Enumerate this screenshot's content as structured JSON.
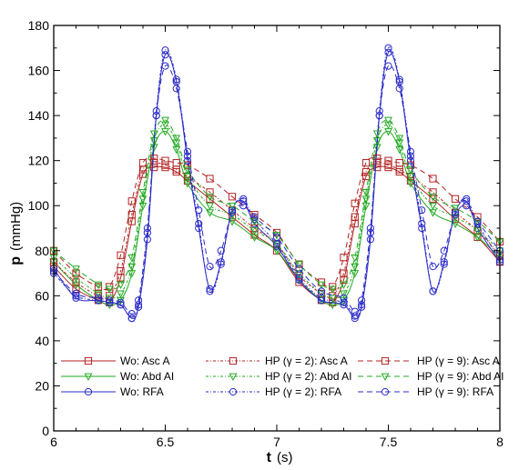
{
  "chart_data": {
    "type": "line",
    "xlabel": "t",
    "xlabel_unit": "(s)",
    "ylabel": "p",
    "ylabel_unit": "(mmHg)",
    "xlim": [
      6,
      8
    ],
    "ylim": [
      0,
      180
    ],
    "xticks": [
      "6",
      "6.5",
      "7",
      "7.5",
      "8"
    ],
    "yticks": [
      "0",
      "20",
      "40",
      "60",
      "80",
      "100",
      "120",
      "140",
      "160",
      "180"
    ],
    "grid": false,
    "legend_position": "bottom, inside plot area, three columns",
    "series": [
      {
        "name": "Wo: Asc A",
        "color": "#b22222",
        "dash": "solid",
        "marker": "square",
        "x": [
          6.0,
          6.1,
          6.2,
          6.25,
          6.3,
          6.35,
          6.4,
          6.45,
          6.5,
          6.55,
          6.6,
          6.7,
          6.8,
          6.9,
          7.0,
          7.1,
          7.2,
          7.25,
          7.3,
          7.35,
          7.4,
          7.45,
          7.5,
          7.55,
          7.6,
          7.7,
          7.8,
          7.9,
          8.0
        ],
        "y": [
          73,
          63,
          58,
          57,
          68,
          93,
          114,
          117,
          117,
          115,
          111,
          103,
          95,
          87,
          80,
          66,
          58,
          57,
          67,
          92,
          113,
          117,
          117,
          115,
          111,
          103,
          94,
          86,
          75
        ]
      },
      {
        "name": "Wo: Abd AI",
        "color": "#22aa22",
        "dash": "solid",
        "marker": "triangle-down",
        "x": [
          6.0,
          6.1,
          6.2,
          6.25,
          6.3,
          6.35,
          6.4,
          6.45,
          6.5,
          6.55,
          6.6,
          6.7,
          6.8,
          6.9,
          7.0,
          7.1,
          7.2,
          7.25,
          7.3,
          7.35,
          7.4,
          7.45,
          7.5,
          7.55,
          7.6,
          7.7,
          7.8,
          7.9,
          8.0
        ],
        "y": [
          75,
          65,
          58,
          56,
          58,
          70,
          100,
          126,
          133,
          125,
          110,
          97,
          93,
          86,
          80,
          67,
          58,
          56,
          58,
          70,
          100,
          126,
          133,
          125,
          110,
          97,
          92,
          86,
          77
        ]
      },
      {
        "name": "Wo: RFA",
        "color": "#2a2ac8",
        "dash": "solid",
        "marker": "circle",
        "x": [
          6.0,
          6.1,
          6.2,
          6.25,
          6.3,
          6.35,
          6.38,
          6.42,
          6.46,
          6.5,
          6.55,
          6.6,
          6.65,
          6.7,
          6.75,
          6.8,
          6.85,
          6.9,
          7.0,
          7.1,
          7.2,
          7.3,
          7.35,
          7.38,
          7.42,
          7.46,
          7.5,
          7.55,
          7.6,
          7.65,
          7.7,
          7.75,
          7.8,
          7.85,
          7.9,
          8.0
        ],
        "y": [
          72,
          59,
          58,
          57,
          56,
          50,
          55,
          85,
          140,
          167,
          155,
          120,
          90,
          63,
          75,
          98,
          102,
          92,
          82,
          67,
          58,
          56,
          50,
          55,
          85,
          140,
          168,
          155,
          120,
          90,
          62,
          75,
          97,
          102,
          90,
          75
        ]
      },
      {
        "name": "HP (γ = 2): Asc A",
        "color": "#b22222",
        "dash": "3,2,1,2",
        "marker": "square",
        "x": [
          6.0,
          6.1,
          6.2,
          6.25,
          6.3,
          6.35,
          6.4,
          6.45,
          6.5,
          6.55,
          6.6,
          6.7,
          6.8,
          6.9,
          7.0,
          7.1,
          7.2,
          7.25,
          7.3,
          7.35,
          7.4,
          7.45,
          7.5,
          7.55,
          7.6,
          7.7,
          7.8,
          7.9,
          8.0
        ],
        "y": [
          75,
          66,
          60,
          60,
          71,
          96,
          116,
          119,
          118,
          116,
          113,
          106,
          98,
          90,
          83,
          69,
          61,
          60,
          70,
          95,
          115,
          119,
          118,
          116,
          113,
          106,
          97,
          89,
          78
        ]
      },
      {
        "name": "HP (γ = 2): Abd AI",
        "color": "#22aa22",
        "dash": "3,2,1,2",
        "marker": "triangle-down",
        "x": [
          6.0,
          6.1,
          6.2,
          6.25,
          6.3,
          6.35,
          6.4,
          6.45,
          6.5,
          6.55,
          6.6,
          6.7,
          6.8,
          6.9,
          7.0,
          7.1,
          7.2,
          7.25,
          7.3,
          7.35,
          7.4,
          7.45,
          7.5,
          7.55,
          7.6,
          7.7,
          7.8,
          7.9,
          8.0
        ],
        "y": [
          77,
          68,
          61,
          59,
          61,
          73,
          103,
          129,
          136,
          128,
          113,
          100,
          96,
          89,
          83,
          70,
          61,
          59,
          61,
          73,
          103,
          129,
          136,
          128,
          113,
          100,
          95,
          89,
          80
        ]
      },
      {
        "name": "HP (γ = 2): RFA",
        "color": "#2a2ac8",
        "dash": "3,2,1,2",
        "marker": "circle",
        "x": [
          6.0,
          6.1,
          6.2,
          6.25,
          6.3,
          6.35,
          6.38,
          6.42,
          6.46,
          6.5,
          6.55,
          6.6,
          6.65,
          6.7,
          6.75,
          6.8,
          6.85,
          6.9,
          7.0,
          7.1,
          7.2,
          7.3,
          7.35,
          7.38,
          7.42,
          7.46,
          7.5,
          7.55,
          7.6,
          7.65,
          7.7,
          7.75,
          7.8,
          7.85,
          7.9,
          8.0
        ],
        "y": [
          70,
          60,
          58,
          57,
          56,
          50,
          56,
          88,
          142,
          169,
          156,
          122,
          92,
          62,
          74,
          98,
          103,
          94,
          83,
          68,
          59,
          57,
          51,
          56,
          88,
          142,
          170,
          156,
          122,
          92,
          62,
          74,
          97,
          103,
          92,
          76
        ]
      },
      {
        "name": "HP (γ = 9): Asc A",
        "color": "#b22222",
        "dash": "6,4",
        "marker": "square",
        "x": [
          6.0,
          6.1,
          6.2,
          6.25,
          6.3,
          6.35,
          6.4,
          6.45,
          6.5,
          6.55,
          6.6,
          6.7,
          6.8,
          6.9,
          7.0,
          7.1,
          7.2,
          7.25,
          7.3,
          7.35,
          7.4,
          7.45,
          7.5,
          7.55,
          7.6,
          7.7,
          7.8,
          7.9,
          8.0
        ],
        "y": [
          80,
          70,
          64,
          64,
          78,
          102,
          119,
          121,
          120,
          119,
          118,
          112,
          104,
          96,
          88,
          74,
          66,
          64,
          77,
          101,
          119,
          121,
          120,
          119,
          118,
          112,
          103,
          95,
          84
        ]
      },
      {
        "name": "HP (γ = 9): Abd AI",
        "color": "#22aa22",
        "dash": "6,4",
        "marker": "triangle-down",
        "x": [
          6.0,
          6.1,
          6.2,
          6.25,
          6.3,
          6.35,
          6.4,
          6.45,
          6.5,
          6.55,
          6.6,
          6.7,
          6.8,
          6.9,
          7.0,
          7.1,
          7.2,
          7.25,
          7.3,
          7.35,
          7.4,
          7.45,
          7.5,
          7.55,
          7.6,
          7.7,
          7.8,
          7.9,
          8.0
        ],
        "y": [
          80,
          72,
          65,
          63,
          65,
          77,
          106,
          132,
          138,
          130,
          116,
          104,
          100,
          93,
          87,
          74,
          65,
          63,
          65,
          77,
          106,
          132,
          138,
          130,
          116,
          104,
          99,
          93,
          84
        ]
      },
      {
        "name": "HP (γ = 9): RFA",
        "color": "#2a2ac8",
        "dash": "6,4",
        "marker": "circle",
        "x": [
          6.0,
          6.1,
          6.2,
          6.25,
          6.3,
          6.35,
          6.38,
          6.42,
          6.46,
          6.5,
          6.55,
          6.6,
          6.65,
          6.7,
          6.75,
          6.8,
          6.85,
          6.9,
          7.0,
          7.1,
          7.2,
          7.3,
          7.35,
          7.38,
          7.42,
          7.46,
          7.5,
          7.55,
          7.6,
          7.65,
          7.7,
          7.75,
          7.8,
          7.85,
          7.9,
          8.0
        ],
        "y": [
          71,
          61,
          59,
          58,
          57,
          52,
          58,
          90,
          140,
          162,
          152,
          124,
          98,
          73,
          80,
          97,
          100,
          95,
          86,
          72,
          62,
          59,
          53,
          58,
          90,
          140,
          162,
          152,
          124,
          98,
          73,
          80,
          96,
          100,
          93,
          80
        ]
      }
    ]
  }
}
